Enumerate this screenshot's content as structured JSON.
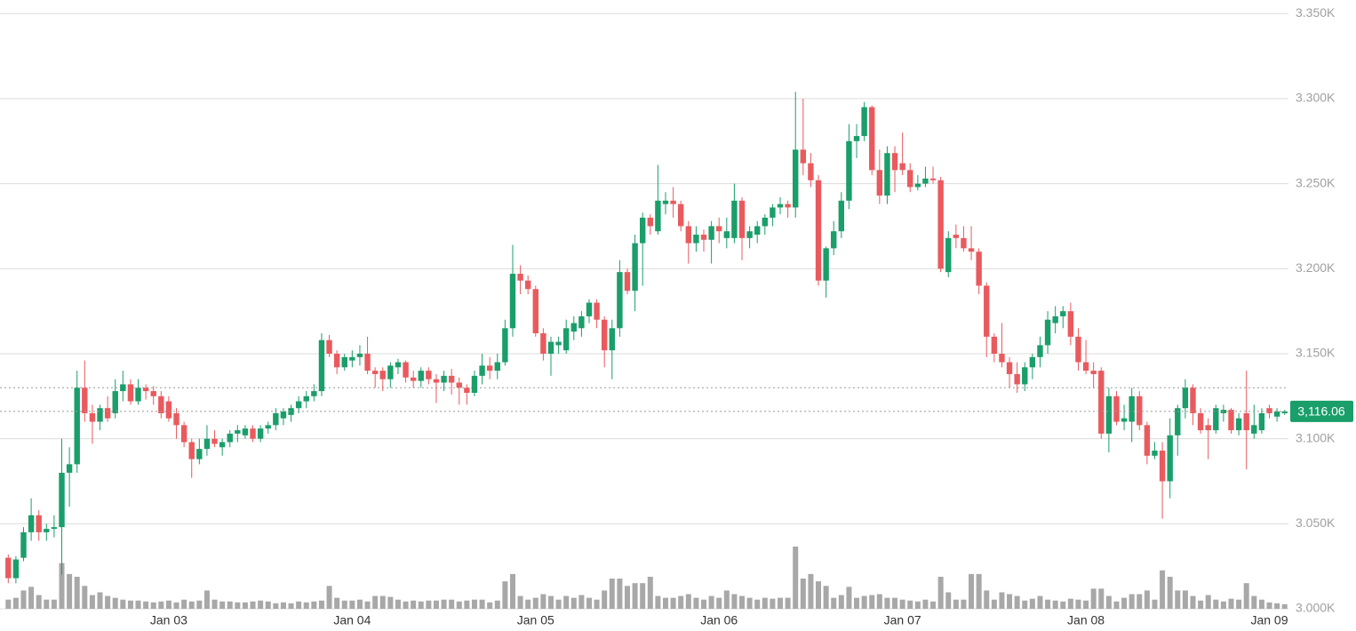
{
  "chart_data": {
    "type": "candlestick",
    "categories": [
      null,
      null,
      null,
      null,
      null,
      null,
      null,
      null,
      null,
      null,
      null,
      null,
      null,
      null,
      null,
      null,
      null,
      null,
      null,
      null,
      null,
      "Jan 03",
      null,
      null,
      null,
      null,
      null,
      null,
      null,
      null,
      null,
      null,
      null,
      null,
      null,
      null,
      null,
      null,
      null,
      null,
      null,
      null,
      null,
      null,
      null,
      "Jan 04",
      null,
      null,
      null,
      null,
      null,
      null,
      null,
      null,
      null,
      null,
      null,
      null,
      null,
      null,
      null,
      null,
      null,
      null,
      null,
      null,
      null,
      null,
      null,
      "Jan 05",
      null,
      null,
      null,
      null,
      null,
      null,
      null,
      null,
      null,
      null,
      null,
      null,
      null,
      null,
      null,
      null,
      null,
      null,
      null,
      null,
      null,
      null,
      null,
      "Jan 06",
      null,
      null,
      null,
      null,
      null,
      null,
      null,
      null,
      null,
      null,
      null,
      null,
      null,
      null,
      null,
      null,
      null,
      null,
      null,
      null,
      null,
      null,
      null,
      "Jan 07",
      null,
      null,
      null,
      null,
      null,
      null,
      null,
      null,
      null,
      null,
      null,
      null,
      null,
      null,
      null,
      null,
      null,
      null,
      null,
      null,
      null,
      null,
      null,
      "Jan 08",
      null,
      null,
      null,
      null,
      null,
      null,
      null,
      null,
      null,
      null,
      null,
      null,
      null,
      null,
      null,
      null,
      null,
      null,
      null,
      null,
      null,
      null,
      null,
      "Jan 09",
      null,
      null
    ],
    "open": [
      3030,
      3018,
      3030,
      3045,
      3055,
      3045,
      3047,
      3048,
      3080,
      3085,
      3130,
      3115,
      3110,
      3118,
      3115,
      3128,
      3132,
      3122,
      3130,
      3128,
      3125,
      3122,
      3115,
      3108,
      3098,
      3088,
      3094,
      3100,
      3095,
      3098,
      3103,
      3102,
      3106,
      3100,
      3106,
      3108,
      3112,
      3114,
      3118,
      3122,
      3125,
      3128,
      3158,
      3150,
      3142,
      3146,
      3148,
      3150,
      3140,
      3140,
      3135,
      3142,
      3145,
      3136,
      3134,
      3140,
      3135,
      3133,
      3137,
      3133,
      3130,
      3127,
      3137,
      3143,
      3140,
      3145,
      3165,
      3197,
      3193,
      3188,
      3162,
      3150,
      3155,
      3152,
      3163,
      3165,
      3172,
      3180,
      3170,
      3152,
      3165,
      3198,
      3187,
      3215,
      3230,
      3222,
      3238,
      3240,
      3238,
      3225,
      3215,
      3220,
      3217,
      3225,
      3218,
      3218,
      3240,
      3218,
      3220,
      3225,
      3230,
      3236,
      3238,
      3236,
      3270,
      3262,
      3252,
      3193,
      3212,
      3222,
      3240,
      3275,
      3278,
      3295,
      3258,
      3243,
      3268,
      3262,
      3258,
      3248,
      3250,
      3253,
      3252,
      3198,
      3220,
      3218,
      3212,
      3210,
      3190,
      3160,
      3150,
      3145,
      3138,
      3132,
      3142,
      3148,
      3155,
      3168,
      3172,
      3175,
      3160,
      3145,
      3140,
      3140,
      3103,
      3125,
      3110,
      3110,
      3125,
      3108,
      3090,
      3093,
      3075,
      3102,
      3118,
      3130,
      3115,
      3108,
      3105,
      3115,
      3117,
      3105,
      3115,
      3103,
      3105,
      3118,
      3113,
      3115
    ],
    "high": [
      3032,
      3031,
      3048,
      3065,
      3058,
      3050,
      3055,
      3100,
      3095,
      3140,
      3146,
      3120,
      3120,
      3125,
      3135,
      3140,
      3135,
      3135,
      3132,
      3131,
      3128,
      3125,
      3118,
      3110,
      3100,
      3100,
      3108,
      3105,
      3100,
      3105,
      3108,
      3108,
      3108,
      3108,
      3110,
      3118,
      3118,
      3120,
      3125,
      3128,
      3132,
      3162,
      3161,
      3152,
      3150,
      3152,
      3155,
      3160,
      3142,
      3142,
      3145,
      3147,
      3146,
      3140,
      3142,
      3142,
      3138,
      3140,
      3141,
      3136,
      3132,
      3140,
      3150,
      3148,
      3150,
      3170,
      3214,
      3202,
      3196,
      3190,
      3165,
      3160,
      3160,
      3170,
      3172,
      3175,
      3182,
      3182,
      3172,
      3170,
      3205,
      3200,
      3220,
      3233,
      3232,
      3261,
      3245,
      3248,
      3240,
      3228,
      3225,
      3223,
      3228,
      3230,
      3230,
      3250,
      3242,
      3225,
      3228,
      3232,
      3238,
      3242,
      3240,
      3304,
      3300,
      3268,
      3255,
      3213,
      3228,
      3245,
      3285,
      3285,
      3298,
      3296,
      3270,
      3272,
      3272,
      3280,
      3262,
      3255,
      3260,
      3260,
      3254,
      3222,
      3226,
      3225,
      3225,
      3212,
      3192,
      3162,
      3168,
      3148,
      3145,
      3145,
      3150,
      3160,
      3175,
      3178,
      3178,
      3180,
      3165,
      3158,
      3145,
      3142,
      3130,
      3128,
      3120,
      3130,
      3128,
      3110,
      3098,
      3098,
      3112,
      3120,
      3135,
      3132,
      3118,
      3112,
      3120,
      3120,
      3118,
      3115,
      3140,
      3120,
      3118,
      3120,
      3118,
      3117
    ],
    "low": [
      3015,
      3015,
      3028,
      3040,
      3040,
      3040,
      3042,
      3020,
      3060,
      3080,
      3110,
      3097,
      3105,
      3110,
      3112,
      3122,
      3120,
      3120,
      3123,
      3120,
      3112,
      3110,
      3100,
      3095,
      3077,
      3085,
      3090,
      3095,
      3090,
      3095,
      3098,
      3100,
      3098,
      3098,
      3103,
      3105,
      3108,
      3110,
      3115,
      3118,
      3122,
      3125,
      3148,
      3138,
      3140,
      3142,
      3143,
      3138,
      3130,
      3128,
      3130,
      3138,
      3133,
      3130,
      3130,
      3132,
      3121,
      3128,
      3126,
      3120,
      3120,
      3125,
      3132,
      3135,
      3135,
      3143,
      3160,
      3185,
      3185,
      3160,
      3146,
      3137,
      3150,
      3150,
      3158,
      3160,
      3168,
      3165,
      3142,
      3135,
      3160,
      3185,
      3175,
      3190,
      3220,
      3220,
      3232,
      3230,
      3222,
      3203,
      3210,
      3210,
      3203,
      3215,
      3212,
      3215,
      3205,
      3212,
      3215,
      3220,
      3225,
      3232,
      3230,
      3230,
      3255,
      3248,
      3190,
      3183,
      3208,
      3218,
      3235,
      3265,
      3275,
      3255,
      3238,
      3238,
      3245,
      3255,
      3245,
      3246,
      3248,
      3250,
      3198,
      3195,
      3212,
      3210,
      3205,
      3185,
      3148,
      3145,
      3142,
      3130,
      3127,
      3128,
      3135,
      3142,
      3150,
      3162,
      3165,
      3155,
      3140,
      3138,
      3130,
      3100,
      3092,
      3108,
      3105,
      3098,
      3105,
      3085,
      3088,
      3053,
      3065,
      3090,
      3112,
      3108,
      3103,
      3088,
      3103,
      3110,
      3103,
      3102,
      3082,
      3100,
      3103,
      3112,
      3110,
      3114
    ],
    "close": [
      3018,
      3029,
      3045,
      3055,
      3045,
      3047,
      3048,
      3080,
      3085,
      3130,
      3115,
      3110,
      3118,
      3112,
      3128,
      3132,
      3122,
      3130,
      3128,
      3125,
      3115,
      3112,
      3108,
      3098,
      3088,
      3094,
      3100,
      3097,
      3098,
      3103,
      3105,
      3106,
      3100,
      3106,
      3108,
      3115,
      3116,
      3118,
      3122,
      3125,
      3128,
      3158,
      3150,
      3142,
      3148,
      3148,
      3150,
      3140,
      3138,
      3135,
      3143,
      3145,
      3136,
      3134,
      3140,
      3135,
      3133,
      3137,
      3133,
      3130,
      3127,
      3137,
      3143,
      3140,
      3145,
      3165,
      3197,
      3193,
      3188,
      3162,
      3150,
      3157,
      3157,
      3165,
      3168,
      3172,
      3180,
      3170,
      3152,
      3165,
      3198,
      3187,
      3215,
      3230,
      3225,
      3240,
      3240,
      3238,
      3225,
      3215,
      3220,
      3217,
      3225,
      3222,
      3222,
      3240,
      3218,
      3222,
      3225,
      3230,
      3236,
      3238,
      3236,
      3270,
      3262,
      3252,
      3193,
      3212,
      3222,
      3240,
      3275,
      3278,
      3295,
      3258,
      3243,
      3268,
      3258,
      3258,
      3248,
      3250,
      3253,
      3252,
      3200,
      3218,
      3218,
      3212,
      3210,
      3190,
      3160,
      3150,
      3145,
      3138,
      3132,
      3142,
      3148,
      3155,
      3170,
      3172,
      3175,
      3160,
      3145,
      3140,
      3138,
      3103,
      3125,
      3110,
      3112,
      3125,
      3108,
      3090,
      3093,
      3075,
      3102,
      3118,
      3130,
      3115,
      3105,
      3105,
      3118,
      3117,
      3105,
      3112,
      3105,
      3108,
      3115,
      3115,
      3116,
      3116.06
    ],
    "volume": [
      10,
      12,
      20,
      24,
      15,
      10,
      10,
      50,
      38,
      35,
      25,
      15,
      18,
      14,
      12,
      10,
      9,
      9,
      8,
      7,
      8,
      9,
      7,
      10,
      8,
      9,
      20,
      10,
      8,
      8,
      7,
      7,
      8,
      9,
      8,
      6,
      7,
      6,
      8,
      7,
      8,
      9,
      25,
      12,
      9,
      9,
      10,
      8,
      14,
      14,
      13,
      10,
      8,
      9,
      8,
      9,
      9,
      10,
      10,
      8,
      9,
      10,
      10,
      7,
      9,
      30,
      38,
      14,
      10,
      12,
      16,
      14,
      10,
      14,
      12,
      15,
      12,
      10,
      20,
      33,
      33,
      25,
      28,
      28,
      35,
      14,
      12,
      12,
      14,
      16,
      12,
      10,
      14,
      12,
      20,
      16,
      14,
      12,
      10,
      12,
      11,
      12,
      12,
      68,
      33,
      38,
      30,
      25,
      12,
      15,
      24,
      12,
      14,
      15,
      16,
      12,
      12,
      10,
      9,
      8,
      10,
      8,
      35,
      18,
      10,
      10,
      38,
      38,
      20,
      10,
      18,
      16,
      14,
      9,
      11,
      14,
      10,
      9,
      8,
      11,
      10,
      9,
      22,
      22,
      14,
      8,
      12,
      16,
      16,
      20,
      10,
      42,
      35,
      20,
      20,
      14,
      9,
      15,
      10,
      8,
      11,
      10,
      28,
      14,
      10,
      7,
      6,
      5
    ],
    "up_color": "#1a9e6a",
    "down_color": "#e95a5e",
    "volume_color": "#a8a8a8",
    "ylim": [
      3000,
      3358
    ],
    "yticks": [
      {
        "value": 3000,
        "label": "3.000K"
      },
      {
        "value": 3050,
        "label": "3.050K"
      },
      {
        "value": 3100,
        "label": "3.100K"
      },
      {
        "value": 3150,
        "label": "3.150K"
      },
      {
        "value": 3200,
        "label": "3.200K"
      },
      {
        "value": 3250,
        "label": "3.250K"
      },
      {
        "value": 3300,
        "label": "3.300K"
      },
      {
        "value": 3350,
        "label": "3.350K"
      }
    ],
    "grid": true,
    "reference_lines": [
      3130
    ],
    "last_price": {
      "value": 3116.06,
      "label": "3,116.06"
    }
  }
}
